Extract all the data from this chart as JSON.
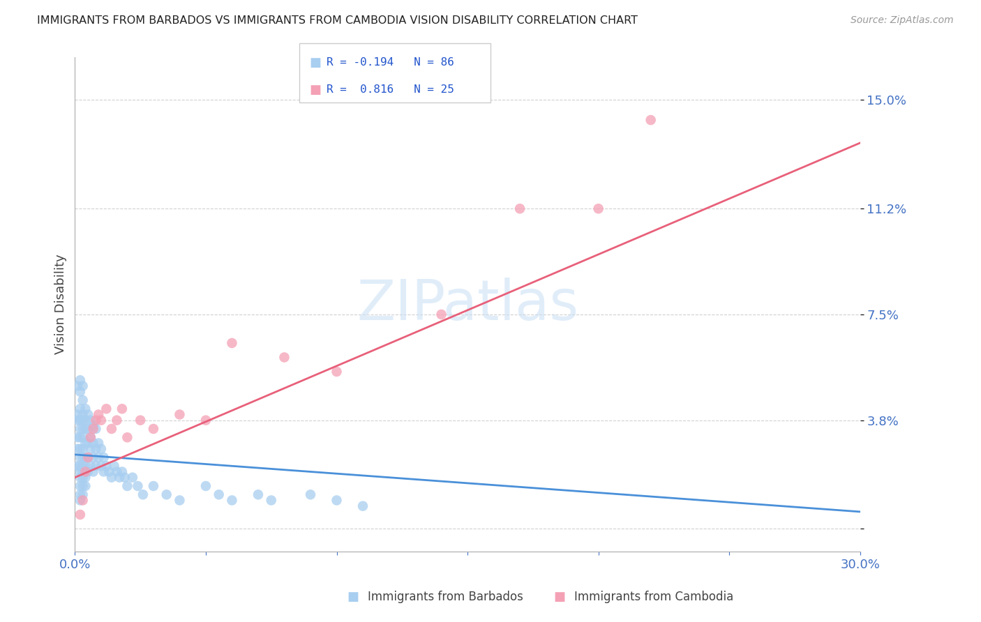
{
  "title": "IMMIGRANTS FROM BARBADOS VS IMMIGRANTS FROM CAMBODIA VISION DISABILITY CORRELATION CHART",
  "source": "Source: ZipAtlas.com",
  "ylabel": "Vision Disability",
  "xlim": [
    0.0,
    0.3
  ],
  "ylim": [
    -0.008,
    0.165
  ],
  "yticks": [
    0.0,
    0.038,
    0.075,
    0.112,
    0.15
  ],
  "ytick_labels": [
    "",
    "3.8%",
    "7.5%",
    "11.2%",
    "15.0%"
  ],
  "xticks": [
    0.0,
    0.05,
    0.1,
    0.15,
    0.2,
    0.25,
    0.3
  ],
  "xtick_labels": [
    "0.0%",
    "",
    "",
    "",
    "",
    "",
    "30.0%"
  ],
  "watermark": "ZIPatlas",
  "color_barbados": "#a8cef0",
  "color_cambodia": "#f4a0b5",
  "color_line_barbados": "#4a90d9",
  "color_line_cambodia": "#e8607a",
  "color_axis_labels": "#4472c4",
  "background_color": "#ffffff",
  "barbados_x": [
    0.001,
    0.001,
    0.001,
    0.001,
    0.001,
    0.001,
    0.002,
    0.002,
    0.002,
    0.002,
    0.002,
    0.002,
    0.002,
    0.002,
    0.002,
    0.002,
    0.002,
    0.002,
    0.002,
    0.002,
    0.003,
    0.003,
    0.003,
    0.003,
    0.003,
    0.003,
    0.003,
    0.003,
    0.003,
    0.003,
    0.003,
    0.003,
    0.003,
    0.004,
    0.004,
    0.004,
    0.004,
    0.004,
    0.004,
    0.004,
    0.004,
    0.005,
    0.005,
    0.005,
    0.005,
    0.005,
    0.006,
    0.006,
    0.006,
    0.006,
    0.007,
    0.007,
    0.007,
    0.007,
    0.008,
    0.008,
    0.008,
    0.009,
    0.009,
    0.01,
    0.01,
    0.011,
    0.011,
    0.012,
    0.013,
    0.014,
    0.015,
    0.016,
    0.017,
    0.018,
    0.019,
    0.02,
    0.022,
    0.024,
    0.026,
    0.03,
    0.035,
    0.04,
    0.05,
    0.055,
    0.06,
    0.07,
    0.075,
    0.09,
    0.1,
    0.11
  ],
  "barbados_y": [
    0.05,
    0.04,
    0.038,
    0.032,
    0.028,
    0.022,
    0.052,
    0.048,
    0.042,
    0.038,
    0.035,
    0.032,
    0.028,
    0.025,
    0.022,
    0.02,
    0.018,
    0.015,
    0.012,
    0.01,
    0.05,
    0.045,
    0.04,
    0.038,
    0.035,
    0.032,
    0.028,
    0.025,
    0.022,
    0.02,
    0.018,
    0.015,
    0.012,
    0.042,
    0.038,
    0.035,
    0.03,
    0.025,
    0.022,
    0.018,
    0.015,
    0.04,
    0.035,
    0.03,
    0.025,
    0.02,
    0.038,
    0.032,
    0.028,
    0.022,
    0.036,
    0.03,
    0.025,
    0.02,
    0.035,
    0.028,
    0.022,
    0.03,
    0.025,
    0.028,
    0.022,
    0.025,
    0.02,
    0.022,
    0.02,
    0.018,
    0.022,
    0.02,
    0.018,
    0.02,
    0.018,
    0.015,
    0.018,
    0.015,
    0.012,
    0.015,
    0.012,
    0.01,
    0.015,
    0.012,
    0.01,
    0.012,
    0.01,
    0.012,
    0.01,
    0.008
  ],
  "cambodia_x": [
    0.002,
    0.003,
    0.004,
    0.005,
    0.006,
    0.007,
    0.008,
    0.009,
    0.01,
    0.012,
    0.014,
    0.016,
    0.018,
    0.02,
    0.025,
    0.03,
    0.04,
    0.05,
    0.06,
    0.08,
    0.1,
    0.14,
    0.17,
    0.2,
    0.22
  ],
  "cambodia_y": [
    0.005,
    0.01,
    0.02,
    0.025,
    0.032,
    0.035,
    0.038,
    0.04,
    0.038,
    0.042,
    0.035,
    0.038,
    0.042,
    0.032,
    0.038,
    0.035,
    0.04,
    0.038,
    0.065,
    0.06,
    0.055,
    0.075,
    0.112,
    0.112,
    0.143
  ],
  "camb_line_x": [
    0.0,
    0.3
  ],
  "camb_line_y": [
    0.018,
    0.135
  ],
  "barb_line_x": [
    0.0,
    0.3
  ],
  "barb_line_y": [
    0.026,
    0.006
  ]
}
